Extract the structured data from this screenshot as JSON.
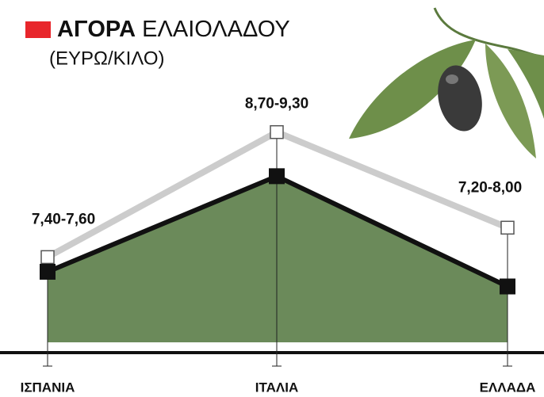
{
  "chart_data": {
    "type": "range-line",
    "title_parts": [
      "ΑΓΟΡΑ",
      "ΕΛΑΙΟΛΑΔΟΥ"
    ],
    "subtitle": "(ΕΥΡΩ/ΚΙΛΟ)",
    "categories": [
      "ΙΣΠΑΝΙΑ",
      "ΙΤΑΛΙΑ",
      "ΕΛΛΑΔΑ"
    ],
    "series": [
      {
        "color": "#111111",
        "area_color": "#6b8a5a",
        "values": [
          7.4,
          8.7,
          7.2
        ]
      },
      {
        "color": "#cccccc",
        "values": [
          7.6,
          9.3,
          8.0
        ]
      }
    ],
    "value_labels": [
      "7,40-7,60",
      "8,70-9,30",
      "7,20-8,00"
    ],
    "ylim": [
      6.3,
      11
    ]
  }
}
